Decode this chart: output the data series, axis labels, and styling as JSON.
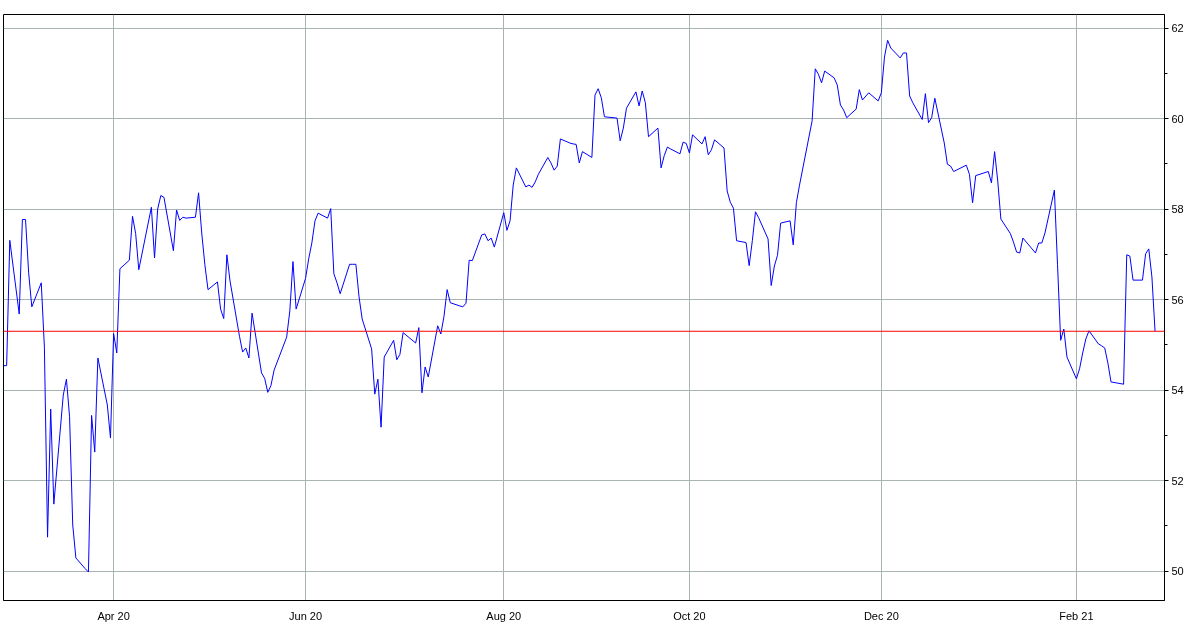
{
  "chart_data": {
    "type": "line",
    "x": [
      "2020-02-26",
      "2020-02-27",
      "2020-02-28",
      "2020-03-02",
      "2020-03-03",
      "2020-03-04",
      "2020-03-05",
      "2020-03-06",
      "2020-03-09",
      "2020-03-10",
      "2020-03-11",
      "2020-03-12",
      "2020-03-13",
      "2020-03-16",
      "2020-03-17",
      "2020-03-18",
      "2020-03-19",
      "2020-03-20",
      "2020-03-23",
      "2020-03-24",
      "2020-03-25",
      "2020-03-26",
      "2020-03-27",
      "2020-03-30",
      "2020-03-31",
      "2020-04-01",
      "2020-04-02",
      "2020-04-03",
      "2020-04-06",
      "2020-04-07",
      "2020-04-08",
      "2020-04-09",
      "2020-04-13",
      "2020-04-14",
      "2020-04-15",
      "2020-04-16",
      "2020-04-17",
      "2020-04-20",
      "2020-04-21",
      "2020-04-22",
      "2020-04-23",
      "2020-04-24",
      "2020-04-27",
      "2020-04-28",
      "2020-04-29",
      "2020-04-30",
      "2020-05-01",
      "2020-05-04",
      "2020-05-05",
      "2020-05-06",
      "2020-05-07",
      "2020-05-08",
      "2020-05-11",
      "2020-05-12",
      "2020-05-13",
      "2020-05-14",
      "2020-05-15",
      "2020-05-18",
      "2020-05-19",
      "2020-05-20",
      "2020-05-21",
      "2020-05-22",
      "2020-05-26",
      "2020-05-27",
      "2020-05-28",
      "2020-05-29",
      "2020-06-01",
      "2020-06-02",
      "2020-06-03",
      "2020-06-04",
      "2020-06-05",
      "2020-06-08",
      "2020-06-09",
      "2020-06-10",
      "2020-06-11",
      "2020-06-12",
      "2020-06-15",
      "2020-06-16",
      "2020-06-17",
      "2020-06-18",
      "2020-06-19",
      "2020-06-22",
      "2020-06-23",
      "2020-06-24",
      "2020-06-25",
      "2020-06-26",
      "2020-06-29",
      "2020-06-30",
      "2020-07-01",
      "2020-07-02",
      "2020-07-06",
      "2020-07-07",
      "2020-07-08",
      "2020-07-09",
      "2020-07-10",
      "2020-07-13",
      "2020-07-14",
      "2020-07-15",
      "2020-07-16",
      "2020-07-17",
      "2020-07-20",
      "2020-07-21",
      "2020-07-22",
      "2020-07-23",
      "2020-07-24",
      "2020-07-27",
      "2020-07-28",
      "2020-07-29",
      "2020-07-30",
      "2020-07-31",
      "2020-08-03",
      "2020-08-04",
      "2020-08-05",
      "2020-08-06",
      "2020-08-07",
      "2020-08-10",
      "2020-08-11",
      "2020-08-12",
      "2020-08-13",
      "2020-08-14",
      "2020-08-17",
      "2020-08-18",
      "2020-08-19",
      "2020-08-20",
      "2020-08-21",
      "2020-08-24",
      "2020-08-25",
      "2020-08-26",
      "2020-08-27",
      "2020-08-28",
      "2020-08-31",
      "2020-09-01",
      "2020-09-02",
      "2020-09-03",
      "2020-09-04",
      "2020-09-08",
      "2020-09-09",
      "2020-09-10",
      "2020-09-11",
      "2020-09-14",
      "2020-09-15",
      "2020-09-16",
      "2020-09-17",
      "2020-09-18",
      "2020-09-21",
      "2020-09-22",
      "2020-09-23",
      "2020-09-24",
      "2020-09-25",
      "2020-09-28",
      "2020-09-29",
      "2020-09-30",
      "2020-10-01",
      "2020-10-02",
      "2020-10-05",
      "2020-10-06",
      "2020-10-07",
      "2020-10-08",
      "2020-10-09",
      "2020-10-12",
      "2020-10-13",
      "2020-10-14",
      "2020-10-15",
      "2020-10-16",
      "2020-10-19",
      "2020-10-20",
      "2020-10-21",
      "2020-10-22",
      "2020-10-23",
      "2020-10-26",
      "2020-10-27",
      "2020-10-28",
      "2020-10-29",
      "2020-10-30",
      "2020-11-02",
      "2020-11-03",
      "2020-11-04",
      "2020-11-05",
      "2020-11-09",
      "2020-11-10",
      "2020-11-11",
      "2020-11-12",
      "2020-11-13",
      "2020-11-16",
      "2020-11-17",
      "2020-11-18",
      "2020-11-19",
      "2020-11-20",
      "2020-11-23",
      "2020-11-24",
      "2020-11-25",
      "2020-11-27",
      "2020-11-30",
      "2020-12-01",
      "2020-12-02",
      "2020-12-03",
      "2020-12-04",
      "2020-12-07",
      "2020-12-08",
      "2020-12-09",
      "2020-12-10",
      "2020-12-11",
      "2020-12-14",
      "2020-12-15",
      "2020-12-16",
      "2020-12-17",
      "2020-12-18",
      "2020-12-21",
      "2020-12-22",
      "2020-12-23",
      "2020-12-24",
      "2020-12-28",
      "2020-12-29",
      "2020-12-30",
      "2020-12-31",
      "2021-01-04",
      "2021-01-05",
      "2021-01-06",
      "2021-01-07",
      "2021-01-08",
      "2021-01-11",
      "2021-01-12",
      "2021-01-13",
      "2021-01-14",
      "2021-01-15",
      "2021-01-19",
      "2021-01-20",
      "2021-01-21",
      "2021-01-22",
      "2021-01-25",
      "2021-01-26",
      "2021-01-27",
      "2021-01-28",
      "2021-01-29",
      "2021-02-01",
      "2021-02-02",
      "2021-02-03",
      "2021-02-04",
      "2021-02-05",
      "2021-02-08",
      "2021-02-09",
      "2021-02-10",
      "2021-02-11",
      "2021-02-12",
      "2021-02-16",
      "2021-02-17",
      "2021-02-18",
      "2021-02-19",
      "2021-02-22",
      "2021-02-23",
      "2021-02-24",
      "2021-02-25",
      "2021-02-26"
    ],
    "series": [
      {
        "color": "#0000ff",
        "values": [
          54.54,
          54.54,
          57.31,
          55.68,
          57.77,
          57.77,
          56.59,
          55.84,
          56.37,
          54.95,
          50.75,
          53.58,
          51.48,
          53.89,
          54.24,
          53.41,
          51.02,
          50.29,
          50.05,
          49.98,
          53.44,
          52.63,
          54.71,
          53.67,
          52.94,
          55.25,
          54.82,
          56.68,
          56.87,
          57.84,
          57.46,
          56.66,
          58.04,
          56.92,
          58.0,
          58.3,
          58.26,
          57.08,
          57.98,
          57.75,
          57.82,
          57.8,
          57.82,
          58.36,
          57.47,
          56.77,
          56.22,
          56.39,
          55.79,
          55.58,
          56.99,
          56.41,
          55.19,
          54.84,
          54.93,
          54.71,
          55.7,
          54.38,
          54.26,
          53.95,
          54.1,
          54.44,
          55.17,
          55.75,
          56.84,
          55.79,
          56.47,
          56.9,
          57.25,
          57.74,
          57.91,
          57.8,
          58.01,
          56.57,
          56.37,
          56.13,
          56.78,
          56.78,
          56.78,
          56.06,
          55.57,
          54.91,
          53.91,
          54.24,
          53.18,
          54.73,
          55.1,
          54.67,
          54.79,
          55.27,
          55.04,
          55.38,
          53.94,
          54.51,
          54.29,
          55.42,
          55.24,
          55.63,
          56.22,
          55.93,
          55.86,
          55.84,
          55.92,
          56.87,
          56.86,
          57.43,
          57.45,
          57.3,
          57.36,
          57.16,
          57.92,
          57.53,
          57.74,
          58.53,
          58.91,
          58.49,
          58.53,
          58.48,
          58.6,
          58.77,
          59.14,
          59.02,
          58.86,
          58.95,
          59.55,
          59.46,
          59.44,
          59.43,
          59.02,
          59.27,
          59.14,
          60.52,
          60.66,
          60.46,
          60.04,
          60.01,
          59.51,
          59.79,
          60.23,
          60.59,
          60.28,
          60.61,
          60.35,
          59.6,
          59.79,
          58.91,
          59.18,
          59.37,
          59.33,
          59.22,
          59.48,
          59.45,
          59.24,
          59.64,
          59.44,
          59.6,
          59.2,
          59.31,
          59.53,
          59.35,
          58.4,
          58.15,
          58.02,
          57.3,
          57.26,
          56.75,
          57.3,
          57.94,
          57.81,
          57.34,
          56.31,
          56.74,
          56.98,
          57.69,
          57.74,
          57.21,
          58.14,
          58.53,
          59.95,
          61.1,
          60.98,
          60.79,
          61.05,
          60.9,
          60.74,
          60.3,
          60.19,
          60.02,
          60.21,
          60.64,
          60.41,
          60.57,
          60.39,
          60.57,
          61.36,
          61.73,
          61.56,
          61.34,
          61.45,
          61.45,
          60.5,
          60.35,
          59.98,
          60.55,
          59.91,
          60.02,
          60.45,
          59.46,
          58.99,
          58.95,
          58.83,
          58.97,
          58.77,
          58.14,
          58.74,
          58.83,
          58.58,
          59.27,
          58.62,
          57.78,
          57.46,
          57.27,
          57.05,
          57.03,
          57.36,
          57.03,
          57.25,
          57.25,
          57.47,
          58.42,
          56.77,
          55.1,
          55.35,
          54.73,
          54.25,
          54.47,
          54.82,
          55.13,
          55.31,
          55.02,
          54.98,
          54.93,
          54.6,
          54.18,
          54.13,
          56.99,
          56.96,
          56.43,
          56.43,
          57.01,
          57.12,
          56.5,
          55.3
        ]
      }
    ],
    "xlim": [
      "2020-02-26",
      "2021-03-01"
    ],
    "xticks": [
      {
        "value": "2020-04-01",
        "label": "Apr 20"
      },
      {
        "value": "2020-06-01",
        "label": "Jun 20"
      },
      {
        "value": "2020-08-03",
        "label": "Aug 20"
      },
      {
        "value": "2020-10-01",
        "label": "Oct 20"
      },
      {
        "value": "2020-12-01",
        "label": "Dec 20"
      },
      {
        "value": "2021-02-01",
        "label": "Feb 21"
      }
    ],
    "ylim": [
      49.35,
      62.3
    ],
    "yticks": [
      50,
      {
        "value": 51,
        "label": null
      },
      52,
      {
        "value": 53,
        "label": null
      },
      54,
      {
        "value": 55,
        "label": null
      },
      56,
      {
        "value": 57,
        "label": null
      },
      58,
      {
        "value": 59,
        "label": null
      },
      60,
      {
        "value": 61,
        "label": null
      },
      62
    ],
    "ref_lines": [
      {
        "axis": "y",
        "value": 55.3,
        "color": "#ff0000"
      }
    ],
    "grid": true,
    "line_style": "solid"
  }
}
